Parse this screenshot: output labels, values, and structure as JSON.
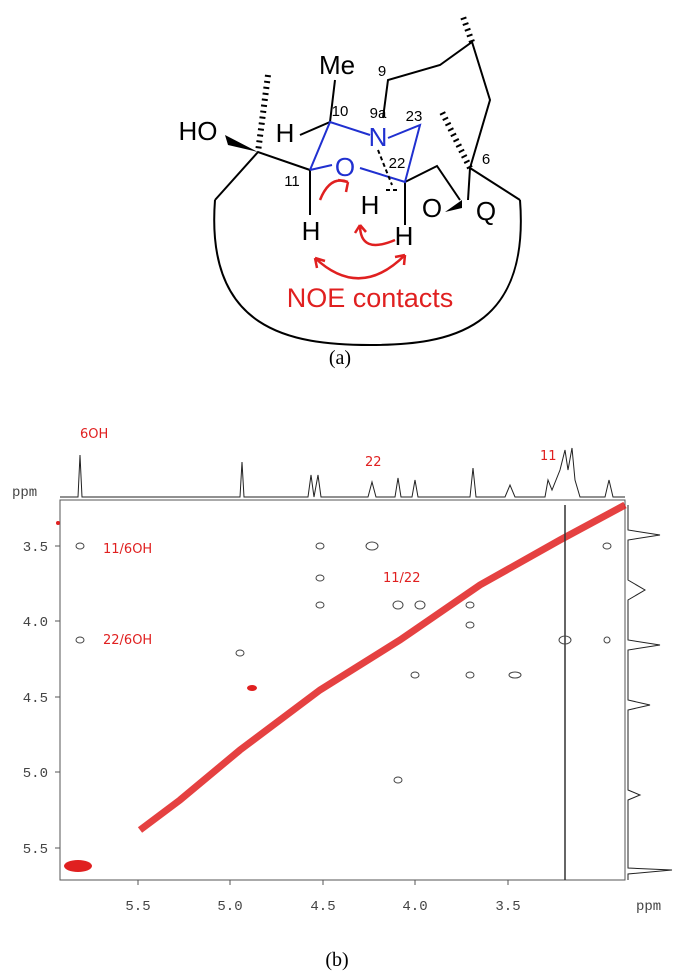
{
  "panel_a": {
    "labels": {
      "me": "Me",
      "c9": "9",
      "c10": "10",
      "n9a": "9a",
      "c23": "23",
      "ho": "HO",
      "h10": "H",
      "n": "N",
      "o": "O",
      "c22": "22",
      "c11": "11",
      "c6": "6",
      "h11": "H",
      "h22a": "H",
      "h22b": "H",
      "o2": "O",
      "q": "Q",
      "noe": "NOE contacts"
    },
    "caption": "(a)"
  },
  "panel_b": {
    "axis_label_top": "ppm",
    "axis_label_right": "ppm",
    "x_ticks": [
      "5.5",
      "5.0",
      "4.5",
      "4.0",
      "3.5"
    ],
    "y_ticks": [
      "3.5",
      "4.0",
      "4.5",
      "5.0",
      "5.5"
    ],
    "annotations": [
      "6OH",
      "22",
      "11",
      "11/6OH",
      "11/22",
      "22/6OH"
    ],
    "caption": "(b)"
  }
}
